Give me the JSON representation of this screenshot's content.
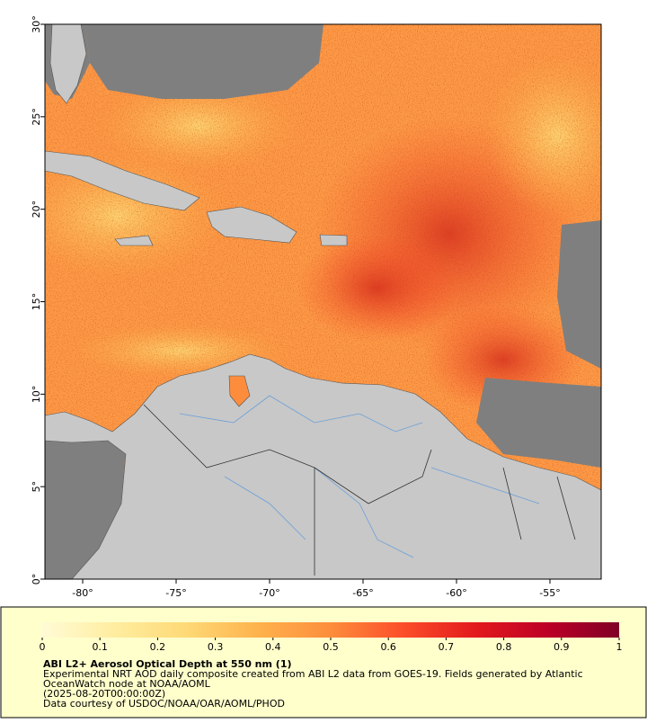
{
  "chart_data": {
    "type": "map",
    "title": "ABI L2+ Aerosol Optical Depth at 550 nm (1)",
    "description": [
      "Experimental NRT AOD daily composite created from ABI L2 data from GOES-19. Fields generated by Atlantic",
      "OceanWatch node at NOAA/AOML"
    ],
    "timestamp": "(2025-08-20T00:00:00Z)",
    "credit": "Data courtesy of USDOC/NOAA/OAR/AOML/PHOD",
    "xlim": [
      -82.02,
      -52.26
    ],
    "ylim": [
      0,
      30
    ],
    "xticks": [
      {
        "value": -80,
        "label": "-80°"
      },
      {
        "value": -75,
        "label": "-75°"
      },
      {
        "value": -70,
        "label": "-70°"
      },
      {
        "value": -65,
        "label": "-65°"
      },
      {
        "value": -60,
        "label": "-60°"
      },
      {
        "value": -55,
        "label": "-55°"
      }
    ],
    "yticks": [
      {
        "value": 0,
        "label": "0°"
      },
      {
        "value": 5,
        "label": "5°"
      },
      {
        "value": 10,
        "label": "10°"
      },
      {
        "value": 15,
        "label": "15°"
      },
      {
        "value": 20,
        "label": "20°"
      },
      {
        "value": 25,
        "label": "25°"
      },
      {
        "value": 30,
        "label": "30°"
      }
    ],
    "colorbar": {
      "lim": [
        0,
        1
      ],
      "ticks": [
        0,
        0.1,
        0.2,
        0.3,
        0.4,
        0.5,
        0.6,
        0.7,
        0.8,
        0.9,
        1
      ],
      "colors": [
        "#fffbd6",
        "#ffeda0",
        "#fed976",
        "#feb24c",
        "#fd8d3c",
        "#fc4e2a",
        "#e31a1c",
        "#bd0026",
        "#800026"
      ]
    }
  }
}
